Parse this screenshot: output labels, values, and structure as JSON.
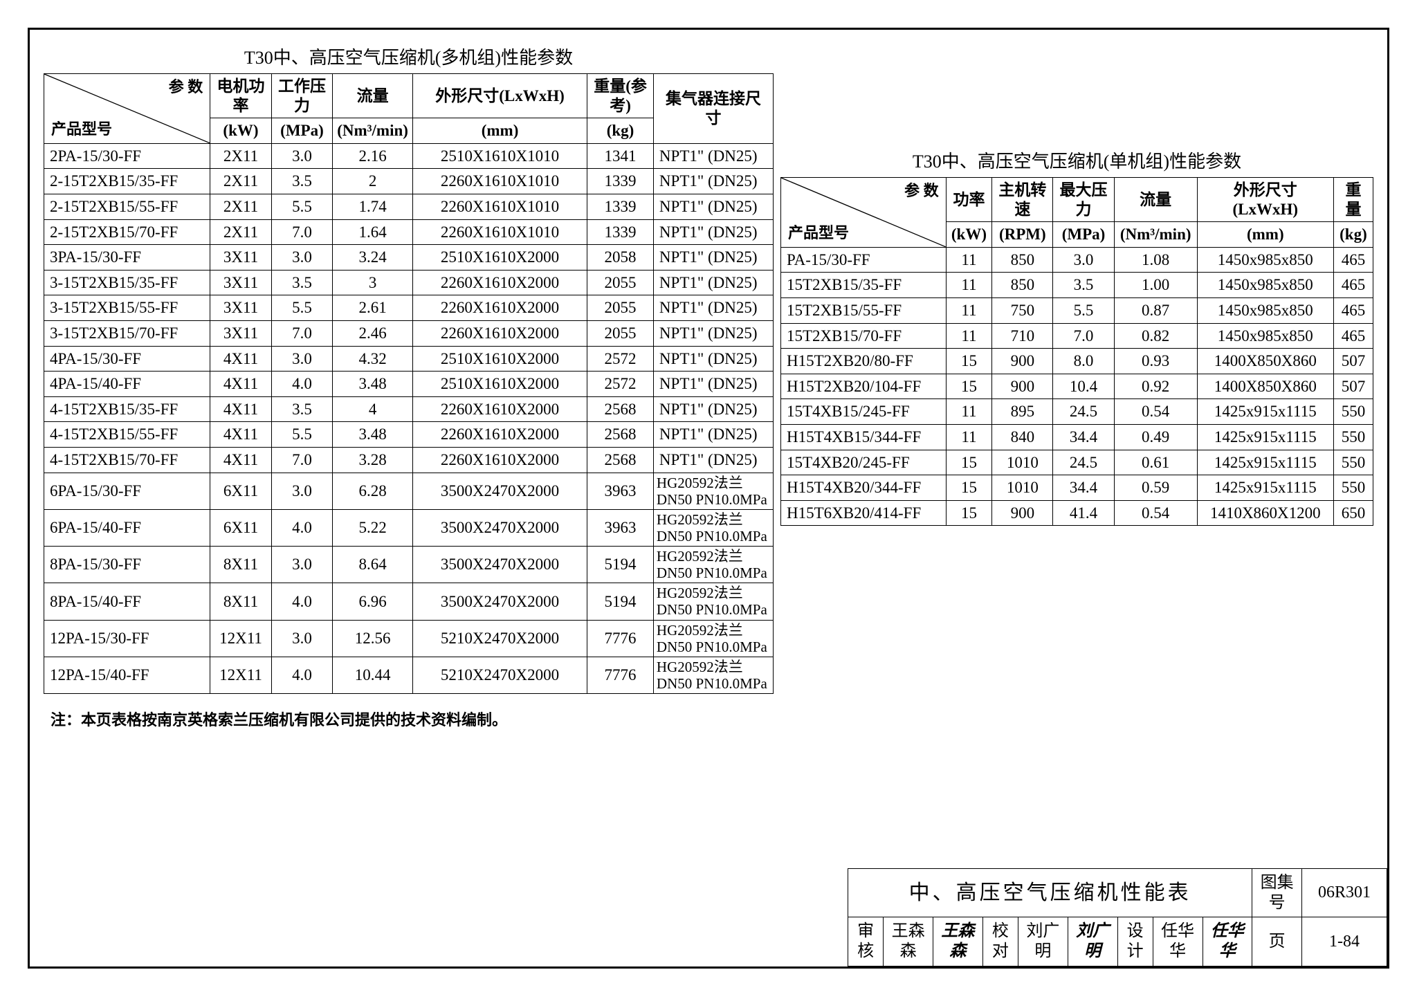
{
  "font_family": "SimSun",
  "border_color": "#000000",
  "background_color": "#ffffff",
  "left_table": {
    "title": "T30中、高压空气压缩机(多机组)性能参数",
    "diag_top": "参 数",
    "diag_bot": "产品型号",
    "columns": [
      {
        "l1": "电机功率",
        "l2": "(kW)"
      },
      {
        "l1": "工作压力",
        "l2": "(MPa)"
      },
      {
        "l1": "流量",
        "l2": "(Nm³/min)"
      },
      {
        "l1": "外形尺寸(LxWxH)",
        "l2": "(mm)"
      },
      {
        "l1": "重量(参考)",
        "l2": "(kg)"
      },
      {
        "l1": "集气器连接尺寸",
        "l2": ""
      }
    ],
    "rows": [
      [
        "2PA-15/30-FF",
        "2X11",
        "3.0",
        "2.16",
        "2510X1610X1010",
        "1341",
        "NPT1\" (DN25)"
      ],
      [
        "2-15T2XB15/35-FF",
        "2X11",
        "3.5",
        "2",
        "2260X1610X1010",
        "1339",
        "NPT1\" (DN25)"
      ],
      [
        "2-15T2XB15/55-FF",
        "2X11",
        "5.5",
        "1.74",
        "2260X1610X1010",
        "1339",
        "NPT1\" (DN25)"
      ],
      [
        "2-15T2XB15/70-FF",
        "2X11",
        "7.0",
        "1.64",
        "2260X1610X1010",
        "1339",
        "NPT1\" (DN25)"
      ],
      [
        "3PA-15/30-FF",
        "3X11",
        "3.0",
        "3.24",
        "2510X1610X2000",
        "2058",
        "NPT1\" (DN25)"
      ],
      [
        "3-15T2XB15/35-FF",
        "3X11",
        "3.5",
        "3",
        "2260X1610X2000",
        "2055",
        "NPT1\" (DN25)"
      ],
      [
        "3-15T2XB15/55-FF",
        "3X11",
        "5.5",
        "2.61",
        "2260X1610X2000",
        "2055",
        "NPT1\" (DN25)"
      ],
      [
        "3-15T2XB15/70-FF",
        "3X11",
        "7.0",
        "2.46",
        "2260X1610X2000",
        "2055",
        "NPT1\" (DN25)"
      ],
      [
        "4PA-15/30-FF",
        "4X11",
        "3.0",
        "4.32",
        "2510X1610X2000",
        "2572",
        "NPT1\" (DN25)"
      ],
      [
        "4PA-15/40-FF",
        "4X11",
        "4.0",
        "3.48",
        "2510X1610X2000",
        "2572",
        "NPT1\" (DN25)"
      ],
      [
        "4-15T2XB15/35-FF",
        "4X11",
        "3.5",
        "4",
        "2260X1610X2000",
        "2568",
        "NPT1\" (DN25)"
      ],
      [
        "4-15T2XB15/55-FF",
        "4X11",
        "5.5",
        "3.48",
        "2260X1610X2000",
        "2568",
        "NPT1\" (DN25)"
      ],
      [
        "4-15T2XB15/70-FF",
        "4X11",
        "7.0",
        "3.28",
        "2260X1610X2000",
        "2568",
        "NPT1\" (DN25)"
      ],
      [
        "6PA-15/30-FF",
        "6X11",
        "3.0",
        "6.28",
        "3500X2470X2000",
        "3963",
        "HG20592法兰\nDN50 PN10.0MPa"
      ],
      [
        "6PA-15/40-FF",
        "6X11",
        "4.0",
        "5.22",
        "3500X2470X2000",
        "3963",
        "HG20592法兰\nDN50 PN10.0MPa"
      ],
      [
        "8PA-15/30-FF",
        "8X11",
        "3.0",
        "8.64",
        "3500X2470X2000",
        "5194",
        "HG20592法兰\nDN50 PN10.0MPa"
      ],
      [
        "8PA-15/40-FF",
        "8X11",
        "4.0",
        "6.96",
        "3500X2470X2000",
        "5194",
        "HG20592法兰\nDN50 PN10.0MPa"
      ],
      [
        "12PA-15/30-FF",
        "12X11",
        "3.0",
        "12.56",
        "5210X2470X2000",
        "7776",
        "HG20592法兰\nDN50 PN10.0MPa"
      ],
      [
        "12PA-15/40-FF",
        "12X11",
        "4.0",
        "10.44",
        "5210X2470X2000",
        "7776",
        "HG20592法兰\nDN50 PN10.0MPa"
      ]
    ]
  },
  "right_table": {
    "title": "T30中、高压空气压缩机(单机组)性能参数",
    "diag_top": "参 数",
    "diag_bot": "产品型号",
    "columns": [
      {
        "l1": "功率",
        "l2": "(kW)"
      },
      {
        "l1": "主机转速",
        "l2": "(RPM)"
      },
      {
        "l1": "最大压力",
        "l2": "(MPa)"
      },
      {
        "l1": "流量",
        "l2": "(Nm³/min)"
      },
      {
        "l1": "外形尺寸(LxWxH)",
        "l2": "(mm)"
      },
      {
        "l1": "重量",
        "l2": "(kg)"
      }
    ],
    "rows": [
      [
        "PA-15/30-FF",
        "11",
        "850",
        "3.0",
        "1.08",
        "1450x985x850",
        "465"
      ],
      [
        "15T2XB15/35-FF",
        "11",
        "850",
        "3.5",
        "1.00",
        "1450x985x850",
        "465"
      ],
      [
        "15T2XB15/55-FF",
        "11",
        "750",
        "5.5",
        "0.87",
        "1450x985x850",
        "465"
      ],
      [
        "15T2XB15/70-FF",
        "11",
        "710",
        "7.0",
        "0.82",
        "1450x985x850",
        "465"
      ],
      [
        "H15T2XB20/80-FF",
        "15",
        "900",
        "8.0",
        "0.93",
        "1400X850X860",
        "507"
      ],
      [
        "H15T2XB20/104-FF",
        "15",
        "900",
        "10.4",
        "0.92",
        "1400X850X860",
        "507"
      ],
      [
        "15T4XB15/245-FF",
        "11",
        "895",
        "24.5",
        "0.54",
        "1425x915x1115",
        "550"
      ],
      [
        "H15T4XB15/344-FF",
        "11",
        "840",
        "34.4",
        "0.49",
        "1425x915x1115",
        "550"
      ],
      [
        "15T4XB20/245-FF",
        "15",
        "1010",
        "24.5",
        "0.61",
        "1425x915x1115",
        "550"
      ],
      [
        "H15T4XB20/344-FF",
        "15",
        "1010",
        "34.4",
        "0.59",
        "1425x915x1115",
        "550"
      ],
      [
        "H15T6XB20/414-FF",
        "15",
        "900",
        "41.4",
        "0.54",
        "1410X860X1200",
        "650"
      ]
    ]
  },
  "footnote": "注：本页表格按南京英格索兰压缩机有限公司提供的技术资料编制。",
  "titleblock": {
    "main_title": "中、高压空气压缩机性能表",
    "drawing_set_label": "图集号",
    "drawing_set": "06R301",
    "review_label": "审核",
    "reviewer": "王森森",
    "reviewer_sig": "王森森",
    "check_label": "校对",
    "checker": "刘广明",
    "checker_sig": "刘广明",
    "design_label": "设计",
    "designer": "任华华",
    "designer_sig": "任华华",
    "page_label": "页",
    "page": "1-84"
  }
}
